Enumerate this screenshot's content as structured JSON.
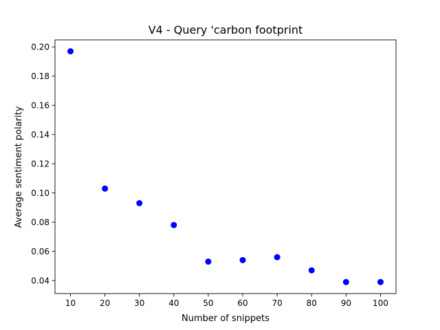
{
  "chart_data": {
    "type": "scatter",
    "title": "V4 - Query 'carbon footprint",
    "xlabel": "Number of snippets",
    "ylabel": "Average sentiment polarity",
    "x": [
      10,
      20,
      30,
      40,
      50,
      60,
      70,
      80,
      90,
      100
    ],
    "y": [
      0.197,
      0.103,
      0.093,
      0.078,
      0.053,
      0.054,
      0.056,
      0.047,
      0.039,
      0.039
    ],
    "xlim": [
      5.5,
      104.5
    ],
    "ylim": [
      0.0311,
      0.2048
    ],
    "xticks": [
      10,
      20,
      30,
      40,
      50,
      60,
      70,
      80,
      90,
      100
    ],
    "xtick_labels": [
      "10",
      "20",
      "30",
      "40",
      "50",
      "60",
      "70",
      "80",
      "90",
      "100"
    ],
    "yticks": [
      0.04,
      0.06,
      0.08,
      0.1,
      0.12,
      0.14,
      0.16,
      0.18,
      0.2
    ],
    "ytick_labels": [
      "0.04",
      "0.06",
      "0.08",
      "0.10",
      "0.12",
      "0.14",
      "0.16",
      "0.18",
      "0.20"
    ],
    "marker_color": "#0000ff",
    "grid": false,
    "legend": "none"
  }
}
